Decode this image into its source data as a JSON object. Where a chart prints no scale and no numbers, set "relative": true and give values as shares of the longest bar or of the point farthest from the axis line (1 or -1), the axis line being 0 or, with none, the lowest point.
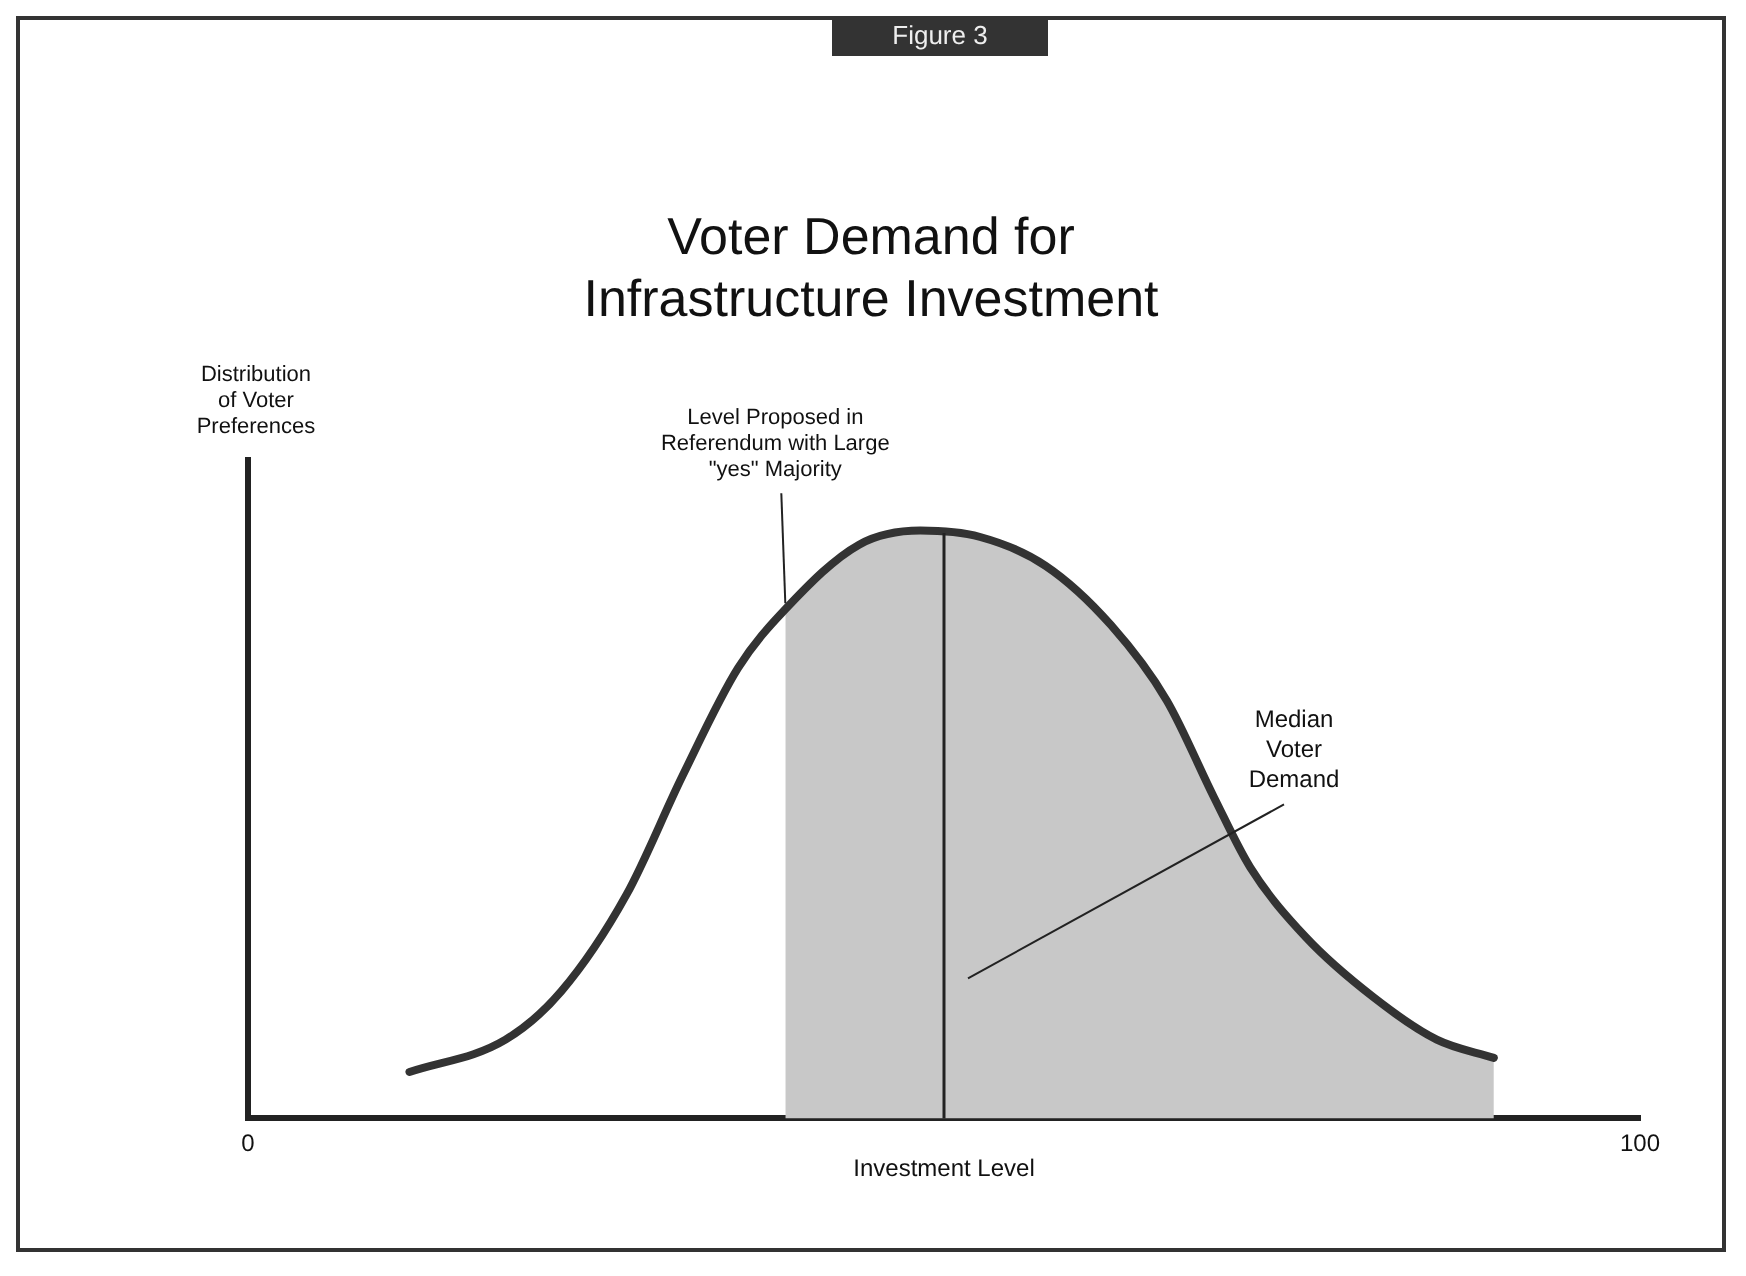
{
  "chart_data": {
    "type": "line",
    "title": "Voter Demand for Infrastructure Investment",
    "xlabel": "Investment Level",
    "ylabel": "Distribution of Voter Preferences",
    "relative": true,
    "xlim": [
      0,
      100
    ],
    "xticks": [
      0,
      100
    ],
    "tick_labels": "x",
    "grid": false,
    "legend": false,
    "marker": "none",
    "series": [
      {
        "type": "area",
        "color": "#c8c8c8",
        "x": [
          38.6,
          43.9,
          48.3,
          52.6,
          57.3,
          62,
          66,
          69.4,
          72,
          76,
          80.8,
          85.4,
          89.5
        ],
        "values": [
          0.866,
          0.976,
          1,
          0.989,
          0.94,
          0.839,
          0.711,
          0.546,
          0.427,
          0.308,
          0.207,
          0.134,
          0.103
        ]
      },
      {
        "type": "line",
        "color": "#333333",
        "x": [
          11.6,
          18.5,
          22.5,
          27.2,
          31.2,
          35.2,
          38.6,
          43.9,
          48.3,
          52.6,
          57.3,
          62,
          66,
          69.4,
          72,
          76,
          80.8,
          85.4,
          89.5
        ],
        "values": [
          0.079,
          0.134,
          0.216,
          0.381,
          0.582,
          0.766,
          0.866,
          0.976,
          1,
          0.989,
          0.94,
          0.839,
          0.711,
          0.546,
          0.427,
          0.308,
          0.207,
          0.134,
          0.103
        ]
      }
    ],
    "ref_lines": [
      {
        "axis": "x",
        "value": 50,
        "label": "Median Voter Demand",
        "color": "#222222"
      }
    ],
    "annotations": [
      "Figure 3",
      {
        "text": "Level Proposed in Referendum with Large \"yes\" Majority",
        "x": 38.6,
        "y": 0.866
      }
    ]
  }
}
